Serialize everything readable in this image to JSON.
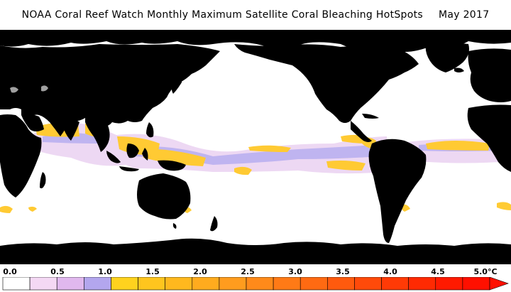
{
  "title": {
    "main": "NOAA Coral Reef Watch Monthly Maximum Satellite Coral Bleaching HotSpots",
    "date": "May 2017"
  },
  "legend": {
    "ticks": [
      "0.0",
      "0.5",
      "1.0",
      "1.5",
      "2.0",
      "2.5",
      "3.0",
      "3.5",
      "4.0",
      "4.5",
      "5.0"
    ],
    "unit": "°C",
    "range": [
      0.0,
      5.0
    ],
    "colors": [
      "#ffffff",
      "#f4d8f4",
      "#e0b8ee",
      "#b3a6ee",
      "#ffd21e",
      "#ffc51e",
      "#ffb81e",
      "#ffab1e",
      "#ff9c1e",
      "#ff8a1a",
      "#ff7a16",
      "#ff6a12",
      "#ff5a0e",
      "#ff4a0a",
      "#ff3a06",
      "#ff2a02",
      "#ff1a00",
      "#ff1000"
    ]
  },
  "colors": {
    "land": "#000000",
    "ocean_no_stress": "#ffffff",
    "watch": "#e8c8f0",
    "hotspot_low": "#b3a6ee",
    "hotspot_bleach": "#ffc51e",
    "ice": "#a0a0a0"
  }
}
